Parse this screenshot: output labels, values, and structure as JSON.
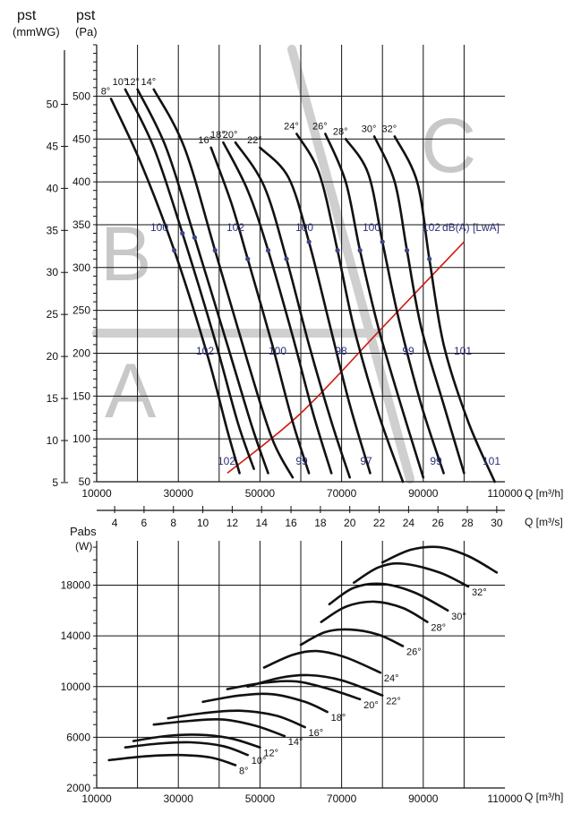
{
  "top_axis": {
    "pst_mmwg_symbol": "pst",
    "pst_mmwg_unit": "(mmWG)",
    "pst_pa_symbol": "pst",
    "pst_pa_unit": "(Pa)",
    "x_unit": "Q [m³/h]",
    "q2_unit": "Q [m³/s]"
  },
  "bottom_axis": {
    "y_symbol": "Pabs",
    "y_unit": "(W)",
    "x_unit": "Q [m³/h]"
  },
  "regions": [
    "A",
    "B",
    "C"
  ],
  "sound_legend": "dB(A) [LwA]",
  "chart_data": [
    {
      "type": "line",
      "title": "",
      "xlabel": "Q [m³/h]",
      "ylabel": "pst (Pa)",
      "xlim": [
        10000,
        110000
      ],
      "ylim": [
        50,
        560
      ],
      "grid": true,
      "x_ticks": [
        10000,
        30000,
        50000,
        70000,
        90000,
        110000
      ],
      "y_ticks_pa": [
        50,
        100,
        150,
        200,
        250,
        300,
        350,
        400,
        450,
        500
      ],
      "y_ticks_mmwg": [
        5,
        10,
        15,
        20,
        25,
        30,
        35,
        40,
        45,
        50
      ],
      "q_ms_ticks": [
        4,
        6,
        8,
        10,
        12,
        14,
        16,
        18,
        20,
        22,
        24,
        26,
        28,
        30
      ],
      "series": [
        {
          "name": "8°",
          "x": [
            13500,
            21000,
            29000,
            37000,
            42000,
            45000
          ],
          "y": [
            497,
            420,
            320,
            200,
            110,
            60
          ]
        },
        {
          "name": "10°",
          "x": [
            17000,
            24000,
            31000,
            39000,
            44500,
            48500
          ],
          "y": [
            508,
            440,
            340,
            215,
            120,
            65
          ]
        },
        {
          "name": "12°",
          "x": [
            20000,
            27000,
            34000,
            42000,
            48000,
            52000
          ],
          "y": [
            508,
            440,
            335,
            210,
            115,
            60
          ]
        },
        {
          "name": "14°",
          "x": [
            24000,
            31500,
            39000,
            47000,
            53000,
            58000
          ],
          "y": [
            508,
            440,
            320,
            190,
            100,
            55
          ]
        },
        {
          "name": "16°",
          "x": [
            38000,
            43000,
            47000,
            53000,
            58000,
            62000
          ],
          "y": [
            440,
            375,
            310,
            210,
            120,
            60
          ]
        },
        {
          "name": "18°",
          "x": [
            41000,
            47000,
            52000,
            58000,
            63000,
            67500
          ],
          "y": [
            446,
            390,
            320,
            220,
            130,
            60
          ]
        },
        {
          "name": "20°",
          "x": [
            44000,
            51000,
            56500,
            62000,
            67500,
            72000
          ],
          "y": [
            446,
            395,
            310,
            210,
            120,
            55
          ]
        },
        {
          "name": "22°",
          "x": [
            50000,
            57000,
            62000,
            67000,
            72000,
            77000
          ],
          "y": [
            440,
            405,
            330,
            235,
            140,
            60
          ]
        },
        {
          "name": "24°",
          "x": [
            59000,
            64500,
            69000,
            73000,
            79000,
            85000
          ],
          "y": [
            456,
            410,
            320,
            230,
            130,
            50
          ]
        },
        {
          "name": "26°",
          "x": [
            66000,
            71000,
            74500,
            79000,
            84500,
            90000
          ],
          "y": [
            456,
            400,
            320,
            230,
            140,
            55
          ]
        },
        {
          "name": "28°",
          "x": [
            71000,
            76500,
            80000,
            84000,
            89500,
            95000
          ],
          "y": [
            450,
            410,
            330,
            240,
            140,
            60
          ]
        },
        {
          "name": "30°",
          "x": [
            78000,
            83000,
            86000,
            89500,
            95000,
            100000
          ],
          "y": [
            453,
            400,
            320,
            230,
            140,
            60
          ]
        },
        {
          "name": "32°",
          "x": [
            83000,
            88500,
            91500,
            95000,
            101000,
            107500
          ],
          "y": [
            453,
            400,
            310,
            210,
            120,
            50
          ]
        }
      ],
      "system_curve": {
        "x": [
          42000,
          60000,
          80000,
          100000
        ],
        "y": [
          60,
          130,
          230,
          330
        ]
      },
      "sound_labels_left": [
        "100",
        "102",
        "100",
        "100"
      ],
      "sound_label_right": "102",
      "sound_labels_middle": [
        "102",
        "100",
        "98",
        "99",
        "101"
      ],
      "sound_labels_bottom": [
        "102",
        "99",
        "97",
        "99",
        "101"
      ]
    },
    {
      "type": "line",
      "title": "",
      "xlabel": "Q [m³/h]",
      "ylabel": "Pabs (W)",
      "xlim": [
        10000,
        110000
      ],
      "ylim": [
        2000,
        21500
      ],
      "grid": true,
      "x_ticks": [
        10000,
        30000,
        50000,
        70000,
        90000,
        110000
      ],
      "y_ticks": [
        2000,
        6000,
        10000,
        14000,
        18000
      ],
      "series": [
        {
          "name": "8°",
          "x": [
            13000,
            22000,
            30000,
            38000,
            44000
          ],
          "y": [
            4200,
            4500,
            4600,
            4400,
            3800
          ]
        },
        {
          "name": "10°",
          "x": [
            17000,
            25000,
            33000,
            41000,
            47000
          ],
          "y": [
            5200,
            5500,
            5600,
            5300,
            4600
          ]
        },
        {
          "name": "12°",
          "x": [
            19000,
            27000,
            35000,
            43000,
            50000
          ],
          "y": [
            5700,
            6100,
            6200,
            5900,
            5200
          ]
        },
        {
          "name": "14°",
          "x": [
            24000,
            33000,
            41000,
            49000,
            56000
          ],
          "y": [
            7000,
            7300,
            7400,
            6900,
            6100
          ]
        },
        {
          "name": "16°",
          "x": [
            27500,
            36000,
            45000,
            54000,
            61000
          ],
          "y": [
            7500,
            7900,
            8100,
            7700,
            6800
          ]
        },
        {
          "name": "18°",
          "x": [
            36000,
            45000,
            53000,
            61000,
            66500
          ],
          "y": [
            8800,
            9300,
            9400,
            8800,
            8000
          ]
        },
        {
          "name": "20°",
          "x": [
            42000,
            51000,
            59000,
            67000,
            74500
          ],
          "y": [
            9800,
            10300,
            10400,
            9800,
            9000
          ]
        },
        {
          "name": "22°",
          "x": [
            47000,
            55000,
            62000,
            70000,
            80000
          ],
          "y": [
            10000,
            10700,
            10900,
            10500,
            9300
          ]
        },
        {
          "name": "24°",
          "x": [
            51000,
            58000,
            64000,
            71000,
            79500
          ],
          "y": [
            11500,
            12500,
            12800,
            12300,
            11100
          ]
        },
        {
          "name": "26°",
          "x": [
            60000,
            66000,
            72000,
            79000,
            85000
          ],
          "y": [
            13300,
            14300,
            14500,
            14100,
            13200
          ]
        },
        {
          "name": "28°",
          "x": [
            65000,
            71000,
            78000,
            85000,
            91000
          ],
          "y": [
            15100,
            16300,
            16700,
            16200,
            15100
          ]
        },
        {
          "name": "30°",
          "x": [
            67000,
            73000,
            80000,
            88000,
            96000
          ],
          "y": [
            16500,
            17800,
            18100,
            17400,
            16000
          ]
        },
        {
          "name": "32°",
          "x": [
            73000,
            79000,
            85000,
            94000,
            101000
          ],
          "y": [
            18200,
            19400,
            19700,
            19000,
            17900
          ]
        },
        {
          "name": "",
          "x": [
            80000,
            87000,
            94000,
            101000,
            108000
          ],
          "y": [
            19800,
            20800,
            21000,
            20300,
            19000
          ]
        }
      ]
    }
  ]
}
